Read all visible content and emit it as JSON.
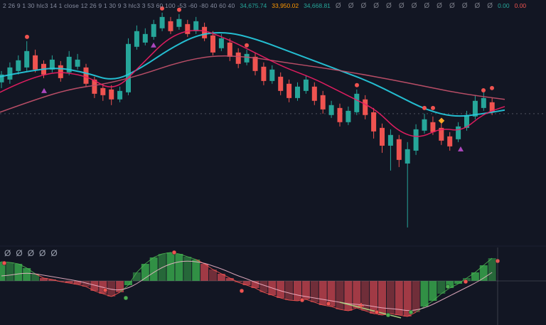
{
  "colors": {
    "bg": "#121623",
    "up": "#26a69a",
    "down": "#ef5350",
    "ma_cyan": "#26c6da",
    "ma_fast": "#e91e63",
    "ma_slow": "#c2506a",
    "muted": "#787b86",
    "value_green": "#26a69a",
    "value_orange": "#ff9800",
    "value_red": "#ef5350",
    "hist_green": "#36a24a",
    "hist_red": "#b5404a",
    "edge_green": "#4caf50",
    "edge_red": "#ef5350",
    "signal": "#f8bbd0",
    "trend": "#aed581",
    "marker_purple": "#ab47bc",
    "marker_orange": "#ffa726"
  },
  "header": {
    "params": "2 26 9 1 30 hlc3 14 1 close 12 26 9 1 30 9 3 hlc3 3 53 60 100 -53 -60 -80 40 60 40",
    "values": [
      {
        "text": "34,675.74",
        "color": "#26a69a"
      },
      {
        "text": "33,950.02",
        "color": "#ff9800"
      },
      {
        "text": "34,668.81",
        "color": "#26a69a"
      }
    ],
    "zeros": [
      "Ø",
      "Ø",
      "Ø",
      "Ø",
      "Ø",
      "Ø",
      "Ø",
      "Ø",
      "Ø",
      "Ø",
      "Ø",
      "Ø",
      "Ø"
    ],
    "right_values": [
      {
        "text": "0.00",
        "color": "#26a69a"
      },
      {
        "text": "0.00",
        "color": "#ef5350"
      }
    ]
  },
  "pane2_zeros": [
    "Ø",
    "Ø",
    "Ø",
    "Ø",
    "Ø"
  ],
  "chart_data": {
    "type": "candlestick",
    "title": "",
    "xlabel": "",
    "ylabel": "",
    "panes": [
      {
        "name": "price",
        "ylim": [
          33200,
          36600
        ],
        "baseline_price": 35116,
        "candles": [
          [
            35577,
            35744,
            35493,
            35692
          ],
          [
            35618,
            35870,
            35556,
            35796
          ],
          [
            35744,
            35974,
            35692,
            35901
          ],
          [
            35796,
            36183,
            35744,
            36037
          ],
          [
            35974,
            36058,
            35723,
            35765
          ],
          [
            35849,
            35901,
            35639,
            35692
          ],
          [
            35765,
            35974,
            35723,
            35911
          ],
          [
            35828,
            35890,
            35587,
            35639
          ],
          [
            35723,
            36037,
            35681,
            35953
          ],
          [
            35807,
            35995,
            35765,
            35911
          ],
          [
            35796,
            35849,
            35514,
            35556
          ],
          [
            35618,
            35660,
            35346,
            35409
          ],
          [
            35493,
            35556,
            35305,
            35388
          ],
          [
            35472,
            35535,
            35242,
            35326
          ],
          [
            35326,
            35514,
            35284,
            35451
          ],
          [
            35430,
            36225,
            35388,
            36142
          ],
          [
            36100,
            36414,
            36058,
            36330
          ],
          [
            36162,
            36372,
            36121,
            36288
          ],
          [
            36246,
            36497,
            36204,
            36434
          ],
          [
            36372,
            36602,
            36330,
            36539
          ],
          [
            36476,
            36539,
            36288,
            36330
          ],
          [
            36393,
            36581,
            36351,
            36508
          ],
          [
            36434,
            36497,
            36246,
            36288
          ],
          [
            36330,
            36539,
            36288,
            36476
          ],
          [
            36393,
            36455,
            36183,
            36225
          ],
          [
            36267,
            36330,
            35974,
            36016
          ],
          [
            36079,
            36288,
            36037,
            36225
          ],
          [
            36162,
            36225,
            35890,
            35953
          ],
          [
            36016,
            36079,
            35786,
            35849
          ],
          [
            35870,
            36058,
            35828,
            35995
          ],
          [
            35953,
            36016,
            35681,
            35744
          ],
          [
            35807,
            35870,
            35535,
            35597
          ],
          [
            35597,
            35828,
            35556,
            35765
          ],
          [
            35660,
            35723,
            35388,
            35451
          ],
          [
            35556,
            35618,
            35284,
            35346
          ],
          [
            35346,
            35577,
            35305,
            35514
          ],
          [
            35451,
            35681,
            35409,
            35618
          ],
          [
            35514,
            35577,
            35242,
            35305
          ],
          [
            35388,
            35451,
            35116,
            35179
          ],
          [
            35096,
            35305,
            35054,
            35242
          ],
          [
            35200,
            35263,
            34928,
            34991
          ],
          [
            34991,
            35221,
            34949,
            35158
          ],
          [
            35137,
            35472,
            35096,
            35409
          ],
          [
            35326,
            35388,
            35033,
            35096
          ],
          [
            35137,
            35200,
            34750,
            34855
          ],
          [
            34907,
            34970,
            34540,
            34645
          ],
          [
            34645,
            34886,
            34279,
            34803
          ],
          [
            34740,
            34803,
            34331,
            34436
          ],
          [
            34383,
            34698,
            33442,
            34593
          ],
          [
            34572,
            34960,
            34509,
            34886
          ],
          [
            34866,
            35116,
            34824,
            35033
          ],
          [
            34991,
            35075,
            34803,
            34845
          ],
          [
            34907,
            34970,
            34656,
            34719
          ],
          [
            34782,
            34845,
            34572,
            34635
          ],
          [
            34740,
            34991,
            34698,
            34928
          ],
          [
            34907,
            35158,
            34866,
            35096
          ],
          [
            35075,
            35388,
            35033,
            35305
          ],
          [
            35200,
            35430,
            35158,
            35346
          ],
          [
            35284,
            35346,
            35096,
            35137
          ]
        ],
        "ma": [
          {
            "name": "ma-cyan",
            "color_key": "ma_cyan",
            "width": 2,
            "points": [
              [
                0,
                35660
              ],
              [
                40,
                35744
              ],
              [
                80,
                35796
              ],
              [
                120,
                35723
              ],
              [
                160,
                35587
              ],
              [
                200,
                35796
              ],
              [
                240,
                36079
              ],
              [
                280,
                36288
              ],
              [
                320,
                36319
              ],
              [
                360,
                36214
              ],
              [
                400,
                36058
              ],
              [
                440,
                35901
              ],
              [
                480,
                35744
              ],
              [
                520,
                35587
              ],
              [
                560,
                35378
              ],
              [
                600,
                35169
              ],
              [
                640,
                35064
              ],
              [
                680,
                35116
              ],
              [
                710,
                35169
              ]
            ]
          },
          {
            "name": "ma-slow",
            "color_key": "ma_slow",
            "width": 1.5,
            "points": [
              [
                0,
                35137
              ],
              [
                50,
                35326
              ],
              [
                100,
                35483
              ],
              [
                150,
                35556
              ],
              [
                200,
                35692
              ],
              [
                250,
                35870
              ],
              [
                300,
                35974
              ],
              [
                350,
                35953
              ],
              [
                400,
                35870
              ],
              [
                450,
                35796
              ],
              [
                500,
                35713
              ],
              [
                550,
                35618
              ],
              [
                600,
                35514
              ],
              [
                650,
                35409
              ],
              [
                710,
                35326
              ]
            ]
          },
          {
            "name": "ma-fast",
            "color_key": "ma_fast",
            "width": 1.5,
            "points": [
              [
                0,
                35430
              ],
              [
                60,
                35744
              ],
              [
                120,
                35692
              ],
              [
                160,
                35430
              ],
              [
                200,
                35849
              ],
              [
                240,
                36267
              ],
              [
                280,
                36372
              ],
              [
                320,
                36214
              ],
              [
                360,
                36006
              ],
              [
                400,
                35796
              ],
              [
                440,
                35639
              ],
              [
                470,
                35483
              ],
              [
                500,
                35326
              ],
              [
                530,
                35169
              ],
              [
                560,
                34855
              ],
              [
                590,
                34750
              ],
              [
                620,
                34907
              ],
              [
                650,
                34855
              ],
              [
                680,
                35116
              ],
              [
                710,
                35221
              ]
            ]
          }
        ],
        "markers": [
          {
            "shape": "circle",
            "color": "#ef5350",
            "x": 38,
            "price": 36246
          },
          {
            "shape": "triangle-up",
            "color": "#ab47bc",
            "x": 62,
            "price": 35451
          },
          {
            "shape": "triangle-up",
            "color": "#ab47bc",
            "x": 216,
            "price": 36121
          },
          {
            "shape": "circle",
            "color": "#ef5350",
            "x": 228,
            "price": 36664
          },
          {
            "shape": "circle",
            "color": "#ef5350",
            "x": 252,
            "price": 36644
          },
          {
            "shape": "circle",
            "color": "#ef5350",
            "x": 347,
            "price": 36121
          },
          {
            "shape": "circle",
            "color": "#ef5350",
            "x": 502,
            "price": 35535
          },
          {
            "shape": "circle",
            "color": "#ef5350",
            "x": 597,
            "price": 35200
          },
          {
            "shape": "circle",
            "color": "#ef5350",
            "x": 609,
            "price": 35200
          },
          {
            "shape": "diamond",
            "color": "#ffa726",
            "x": 621,
            "price": 35012
          },
          {
            "shape": "triangle-up",
            "color": "#ab47bc",
            "x": 648,
            "price": 34593
          },
          {
            "shape": "circle",
            "color": "#ef5350",
            "x": 680,
            "price": 35460
          },
          {
            "shape": "circle",
            "color": "#ef5350",
            "x": 692,
            "price": 35493
          }
        ]
      },
      {
        "name": "oscillator",
        "zero": 0,
        "histogram": [
          27,
          26,
          24,
          18,
          10,
          4,
          2,
          -1,
          -3,
          -5,
          -8,
          -14,
          -18,
          -22,
          -16,
          -6,
          12,
          24,
          33,
          38,
          40,
          38,
          34,
          30,
          24,
          16,
          10,
          4,
          -2,
          -6,
          -10,
          -16,
          -20,
          -24,
          -27,
          -28,
          -26,
          -30,
          -34,
          -36,
          -40,
          -42,
          -38,
          -42,
          -46,
          -48,
          -46,
          -48,
          -50,
          -44,
          -36,
          -28,
          -18,
          -10,
          -4,
          4,
          12,
          22,
          32
        ],
        "signal": [
          7,
          8,
          10,
          11,
          10,
          8,
          6,
          4,
          2,
          0,
          -3,
          -6,
          -9,
          -12,
          -13,
          -10,
          -4,
          4,
          12,
          19,
          24,
          27,
          28,
          27,
          25,
          21,
          17,
          12,
          7,
          3,
          -2,
          -6,
          -10,
          -14,
          -17,
          -20,
          -22,
          -24,
          -26,
          -28,
          -30,
          -32,
          -33,
          -34,
          -36,
          -38,
          -39,
          -40,
          -42,
          -41,
          -38,
          -33,
          -27,
          -21,
          -15,
          -9,
          -3,
          4,
          12
        ],
        "dots": [
          {
            "x": 6,
            "v": 25,
            "color": "#ef5350"
          },
          {
            "x": 148,
            "v": -13,
            "color": "#ef5350"
          },
          {
            "x": 177,
            "v": -24,
            "color": "#4caf50"
          },
          {
            "x": 245,
            "v": 40,
            "color": "#ef5350"
          },
          {
            "x": 340,
            "v": -14,
            "color": "#ef5350"
          },
          {
            "x": 425,
            "v": -27,
            "color": "#ef5350"
          },
          {
            "x": 462,
            "v": -32,
            "color": "#ef5350"
          },
          {
            "x": 530,
            "v": -44,
            "color": "#ef5350"
          },
          {
            "x": 546,
            "v": -48,
            "color": "#4caf50"
          },
          {
            "x": 578,
            "v": -44,
            "color": "#4caf50"
          },
          {
            "x": 630,
            "v": -8,
            "color": "#4caf50"
          },
          {
            "x": 655,
            "v": -1,
            "color": "#ef5350"
          },
          {
            "x": 700,
            "v": 28,
            "color": "#ef5350"
          }
        ],
        "trendline": {
          "x1": 478,
          "v1": -30,
          "x2": 564,
          "v2": -52
        },
        "plus_marker": {
          "x": 508,
          "v": -35
        },
        "cursor_x": 700
      }
    ]
  }
}
